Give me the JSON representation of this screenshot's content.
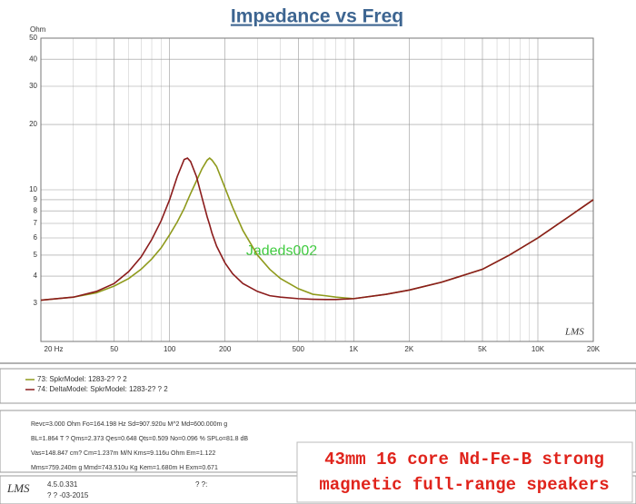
{
  "chart_data": {
    "type": "line",
    "title": "Impedance vs Freq",
    "y_label": "Ohm",
    "log_x": true,
    "log_y": true,
    "grid": true,
    "x": [
      20,
      30,
      40,
      50,
      60,
      70,
      80,
      90,
      100,
      110,
      120,
      125,
      130,
      140,
      150,
      160,
      165,
      170,
      180,
      200,
      220,
      250,
      300,
      350,
      400,
      500,
      600,
      700,
      800,
      1000,
      1500,
      2000,
      3000,
      5000,
      7000,
      10000,
      15000,
      20000
    ],
    "series": [
      {
        "name": "73: SpkrModel: 1283-2? ? 2",
        "color": "#8f9a1c",
        "values": [
          3.1,
          3.2,
          3.35,
          3.6,
          3.9,
          4.3,
          4.8,
          5.4,
          6.2,
          7.1,
          8.2,
          8.9,
          9.6,
          11.0,
          12.5,
          13.7,
          14.0,
          13.7,
          12.8,
          10.2,
          8.3,
          6.5,
          5.0,
          4.3,
          3.9,
          3.5,
          3.3,
          3.25,
          3.2,
          3.15,
          3.3,
          3.45,
          3.75,
          4.3,
          5.0,
          6.0,
          7.6,
          9.0
        ]
      },
      {
        "name": "74: DeltaModel: SpkrModel: 1283-2? ? 2",
        "color": "#8b1c1c",
        "values": [
          3.1,
          3.2,
          3.4,
          3.7,
          4.2,
          4.9,
          5.9,
          7.2,
          9.0,
          11.5,
          13.8,
          14.0,
          13.5,
          11.5,
          9.2,
          7.5,
          6.9,
          6.3,
          5.5,
          4.6,
          4.1,
          3.7,
          3.4,
          3.25,
          3.2,
          3.15,
          3.13,
          3.12,
          3.12,
          3.15,
          3.3,
          3.45,
          3.75,
          4.3,
          5.0,
          6.0,
          7.6,
          9.0
        ]
      }
    ],
    "xlim": [
      20,
      20000
    ],
    "ylim": [
      2,
      50
    ],
    "xticks": [
      {
        "value": 20,
        "label": "20 Hz"
      },
      50,
      100,
      200,
      500,
      {
        "value": 1000,
        "label": "1K"
      },
      {
        "value": 2000,
        "label": "2K"
      },
      {
        "value": 5000,
        "label": "5K"
      },
      {
        "value": 10000,
        "label": "10K"
      },
      {
        "value": 20000,
        "label": "20K"
      }
    ],
    "xminorticks": [
      30,
      40,
      60,
      70,
      80,
      90,
      300,
      400,
      600,
      700,
      800,
      900,
      3000,
      4000,
      6000,
      7000,
      8000,
      9000
    ],
    "yticks": [
      3,
      4,
      5,
      6,
      7,
      8,
      9,
      10,
      20,
      30,
      40,
      50
    ],
    "watermark": "Jadeds002",
    "logo": "LMS"
  },
  "parameters": [
    "Revc=3.000 Ohm  Fo=164.198 Hz  Sd=907.920u M^2 Md=600.000m g",
    "BL=1.864 T ?  Qms=2.373  Qes=0.648  Qts=0.509  No=0.096 %  SPLo=81.8 dB",
    "Vas=148.847 cm?  Cm=1.237m M/N  Kms=9.116u Ohm  Em=1.122",
    "Mms=759.240m g  Mmd=743.510u Kg  Kem=1.680m H  Exm=0.671"
  ],
  "footer": {
    "logo": "LMS",
    "version": "4.5.0.331",
    "date": "? ? -03-2015",
    "time": "? ?:"
  },
  "caption": [
    "43mm 16 core Nd-Fe-B strong",
    "magnetic full-range speakers"
  ]
}
